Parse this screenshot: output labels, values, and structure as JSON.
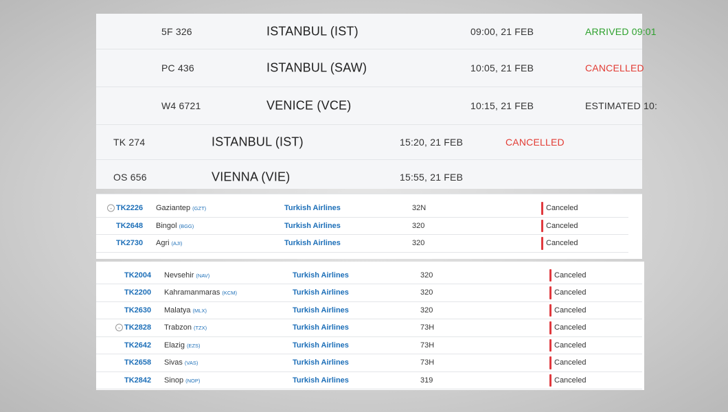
{
  "board_a": {
    "rows": [
      [
        "5F 326",
        "ISTANBUL (IST)",
        "09:00, 21 FEB",
        "ARRIVED 09:01",
        "arrived"
      ],
      [
        "PC 436",
        "ISTANBUL (SAW)",
        "10:05, 21 FEB",
        "CANCELLED",
        "cancelled"
      ],
      [
        "W4 6721",
        "VENICE (VCE)",
        "10:15, 21 FEB",
        "ESTIMATED 10:",
        "estimated"
      ]
    ]
  },
  "board_b": {
    "rows": [
      [
        "TK 274",
        "ISTANBUL (IST)",
        "15:20, 21 FEB",
        "CANCELLED"
      ],
      [
        "OS 656",
        "VIENNA (VIE)",
        "15:55, 21 FEB",
        null
      ]
    ]
  },
  "list_a": {
    "rows": [
      {
        "flight": "TK2226",
        "city": "Gaziantep",
        "code": "(GZT)",
        "airline": "Turkish Airlines",
        "aircraft": "32N",
        "status": "Canceled",
        "expand": true
      },
      {
        "flight": "TK2648",
        "city": "Bingol",
        "code": "(BGG)",
        "airline": "Turkish Airlines",
        "aircraft": "320",
        "status": "Canceled"
      },
      {
        "flight": "TK2730",
        "city": "Agri",
        "code": "(AJI)",
        "airline": "Turkish Airlines",
        "aircraft": "320",
        "status": "Canceled"
      }
    ]
  },
  "list_b": {
    "rows": [
      {
        "flight": "TK2004",
        "city": "Nevsehir",
        "code": "(NAV)",
        "airline": "Turkish Airlines",
        "aircraft": "320",
        "status": "Canceled"
      },
      {
        "flight": "TK2200",
        "city": "Kahramanmaras",
        "code": "(KCM)",
        "airline": "Turkish Airlines",
        "aircraft": "320",
        "status": "Canceled"
      },
      {
        "flight": "TK2630",
        "city": "Malatya",
        "code": "(MLX)",
        "airline": "Turkish Airlines",
        "aircraft": "320",
        "status": "Canceled"
      },
      {
        "flight": "TK2828",
        "city": "Trabzon",
        "code": "(TZX)",
        "airline": "Turkish Airlines",
        "aircraft": "73H",
        "status": "Canceled",
        "expand": true
      },
      {
        "flight": "TK2642",
        "city": "Elazig",
        "code": "(EZS)",
        "airline": "Turkish Airlines",
        "aircraft": "73H",
        "status": "Canceled"
      },
      {
        "flight": "TK2658",
        "city": "Sivas",
        "code": "(VAS)",
        "airline": "Turkish Airlines",
        "aircraft": "73H",
        "status": "Canceled"
      },
      {
        "flight": "TK2842",
        "city": "Sinop",
        "code": "(NOP)",
        "airline": "Turkish Airlines",
        "aircraft": "319",
        "status": "Canceled"
      }
    ]
  }
}
